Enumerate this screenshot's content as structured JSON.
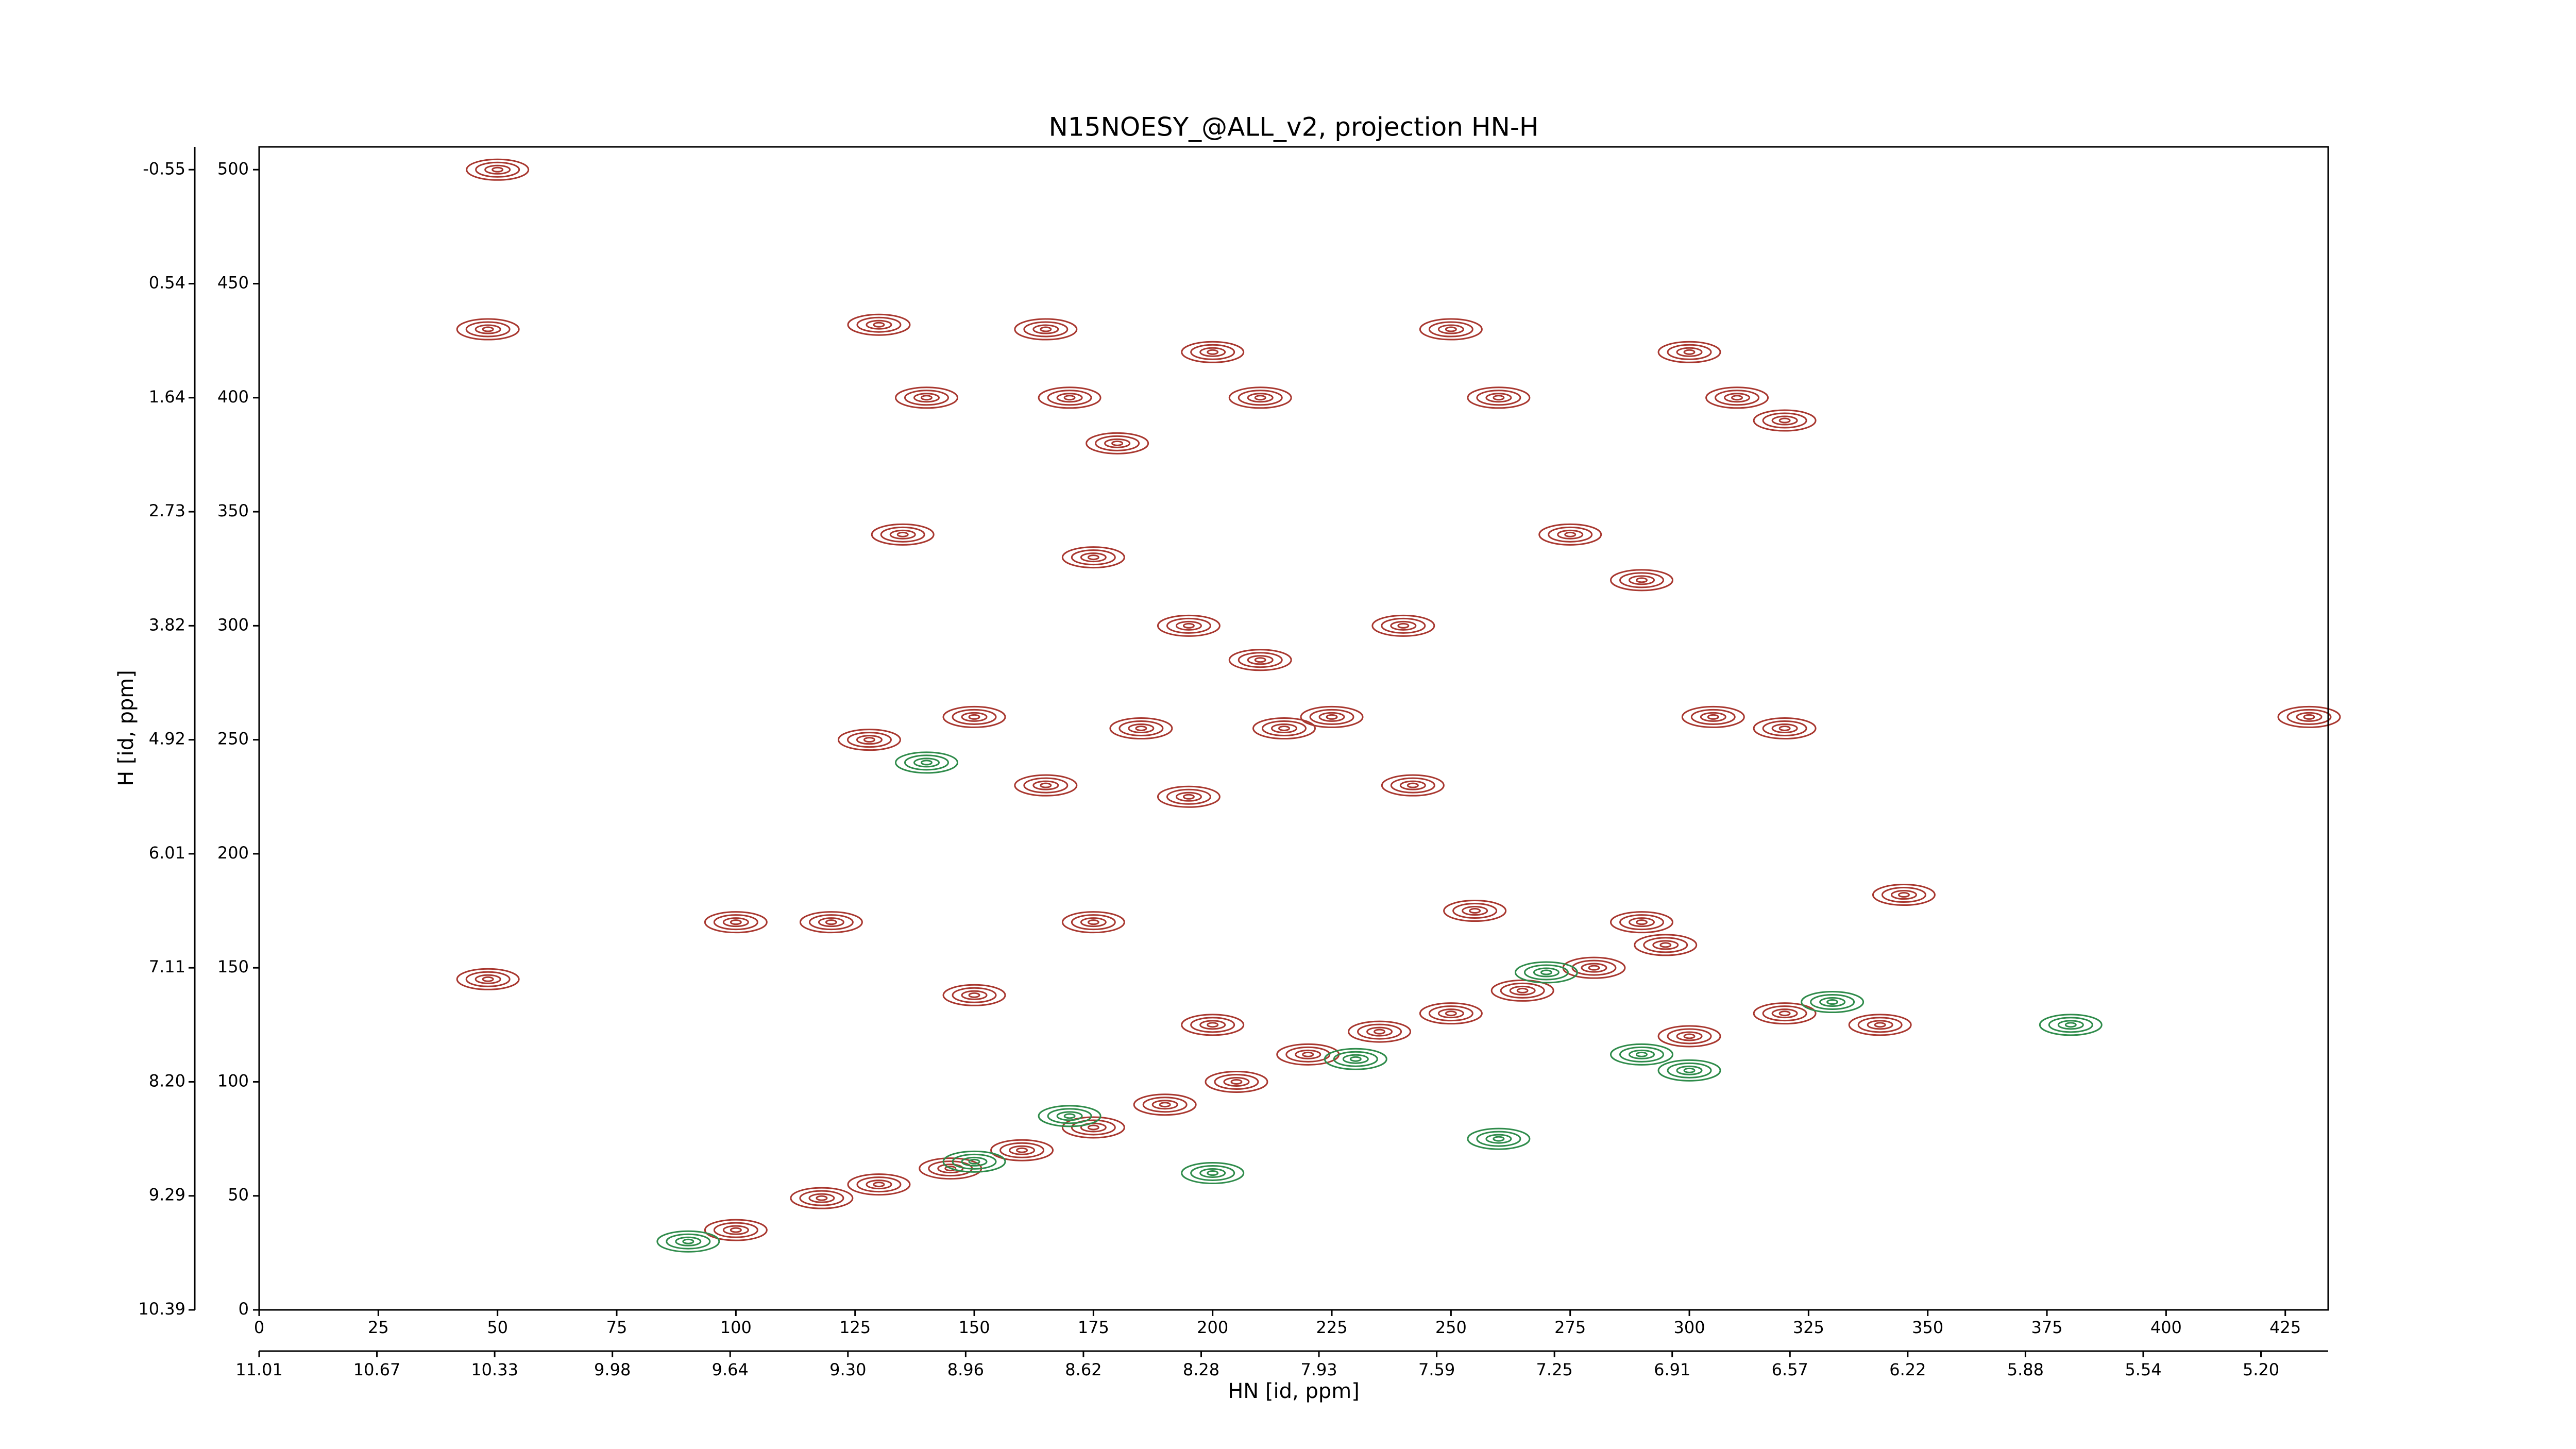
{
  "chart_data": {
    "type": "contour",
    "title": "N15NOESY_@ALL_v2, projection HN-H",
    "xlabel": "HN [id, ppm]",
    "ylabel": "H [id, ppm]",
    "xlim": [
      0,
      434
    ],
    "ylim": [
      0,
      510
    ],
    "xticks": [
      0,
      25,
      50,
      75,
      100,
      125,
      150,
      175,
      200,
      225,
      250,
      275,
      300,
      325,
      350,
      375,
      400,
      425
    ],
    "yticks": [
      0,
      50,
      100,
      150,
      200,
      250,
      300,
      350,
      400,
      450,
      500
    ],
    "x2ticks": [
      {
        "value": 0,
        "label": "11.01"
      },
      {
        "value": 24.7,
        "label": "10.67"
      },
      {
        "value": 49.4,
        "label": "10.33"
      },
      {
        "value": 74.1,
        "label": "9.98"
      },
      {
        "value": 98.8,
        "label": "9.64"
      },
      {
        "value": 123.5,
        "label": "9.30"
      },
      {
        "value": 148.2,
        "label": "8.96"
      },
      {
        "value": 172.9,
        "label": "8.62"
      },
      {
        "value": 197.6,
        "label": "8.28"
      },
      {
        "value": 222.3,
        "label": "7.93"
      },
      {
        "value": 247.0,
        "label": "7.59"
      },
      {
        "value": 271.7,
        "label": "7.25"
      },
      {
        "value": 296.4,
        "label": "6.91"
      },
      {
        "value": 321.1,
        "label": "6.57"
      },
      {
        "value": 345.8,
        "label": "6.22"
      },
      {
        "value": 370.5,
        "label": "5.88"
      },
      {
        "value": 395.2,
        "label": "5.54"
      },
      {
        "value": 419.9,
        "label": "5.20"
      }
    ],
    "y2ticks": [
      {
        "value": 0,
        "label": "10.39"
      },
      {
        "value": 50,
        "label": "9.29"
      },
      {
        "value": 100,
        "label": "8.20"
      },
      {
        "value": 150,
        "label": "7.11"
      },
      {
        "value": 200,
        "label": "6.01"
      },
      {
        "value": 250,
        "label": "4.92"
      },
      {
        "value": 300,
        "label": "3.82"
      },
      {
        "value": 350,
        "label": "2.73"
      },
      {
        "value": 400,
        "label": "1.64"
      },
      {
        "value": 450,
        "label": "0.54"
      },
      {
        "value": 500,
        "label": "-0.55"
      }
    ],
    "series": [
      {
        "color": "#a8372f",
        "x": [
          118,
          130,
          145,
          160,
          175,
          190,
          205,
          220,
          235,
          250,
          265,
          280,
          295,
          130,
          140,
          135,
          128,
          150,
          165,
          170,
          180,
          175,
          200,
          210,
          195,
          210,
          225,
          240,
          250,
          260,
          275,
          290,
          300,
          310,
          320,
          305,
          320,
          185,
          215,
          242,
          195,
          165,
          100,
          48,
          48,
          50,
          345,
          340,
          320,
          300,
          120,
          100,
          290,
          255,
          200,
          175,
          150,
          430
        ],
        "y": [
          49,
          55,
          62,
          70,
          80,
          90,
          100,
          112,
          122,
          130,
          140,
          150,
          160,
          432,
          400,
          340,
          250,
          260,
          430,
          400,
          380,
          330,
          420,
          400,
          300,
          285,
          260,
          300,
          430,
          400,
          340,
          320,
          420,
          400,
          390,
          260,
          255,
          255,
          255,
          230,
          225,
          230,
          35,
          145,
          430,
          500,
          182,
          125,
          130,
          120,
          170,
          170,
          170,
          175,
          125,
          170,
          138,
          260
        ]
      },
      {
        "color": "#2e8b4a",
        "x": [
          150,
          170,
          230,
          270,
          330,
          300,
          200,
          260,
          90,
          140,
          290,
          380
        ],
        "y": [
          65,
          85,
          110,
          148,
          135,
          105,
          60,
          75,
          30,
          240,
          112,
          125
        ]
      }
    ]
  }
}
